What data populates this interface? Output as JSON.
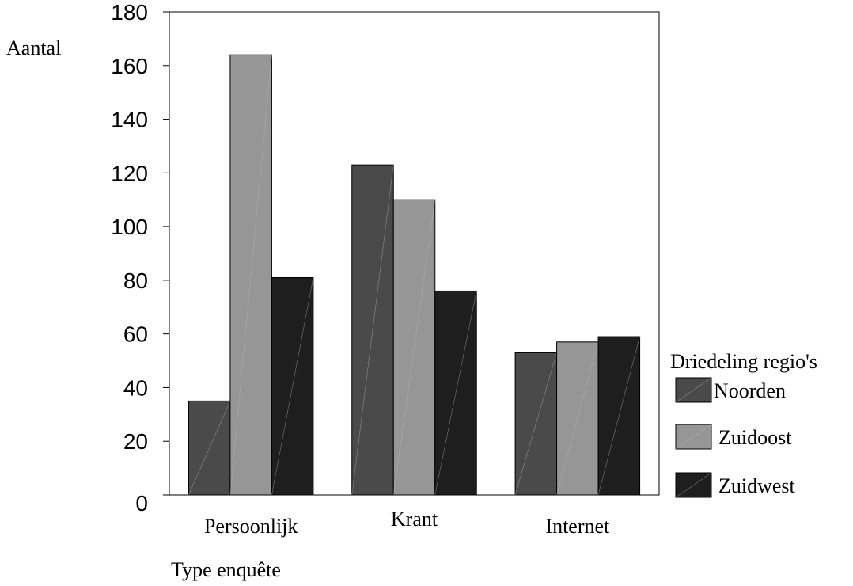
{
  "chart_data": {
    "type": "bar",
    "title": "",
    "ylabel": "Aantal",
    "xlabel": "Type enquête",
    "ylim": [
      0,
      180
    ],
    "yticks": [
      0,
      20,
      40,
      60,
      80,
      100,
      120,
      140,
      160,
      180
    ],
    "categories": [
      "Persoonlijk",
      "Krant",
      "Internet"
    ],
    "legend_title": "Driedeling regio's",
    "legend_position": "right",
    "grid": false,
    "series": [
      {
        "name": "Noorden",
        "values": [
          35,
          123,
          53
        ],
        "color": "#4a4a4a"
      },
      {
        "name": "Zuidoost",
        "values": [
          164,
          110,
          57
        ],
        "color": "#969696"
      },
      {
        "name": "Zuidwest",
        "values": [
          81,
          76,
          59
        ],
        "color": "#1e1e1e"
      }
    ]
  }
}
